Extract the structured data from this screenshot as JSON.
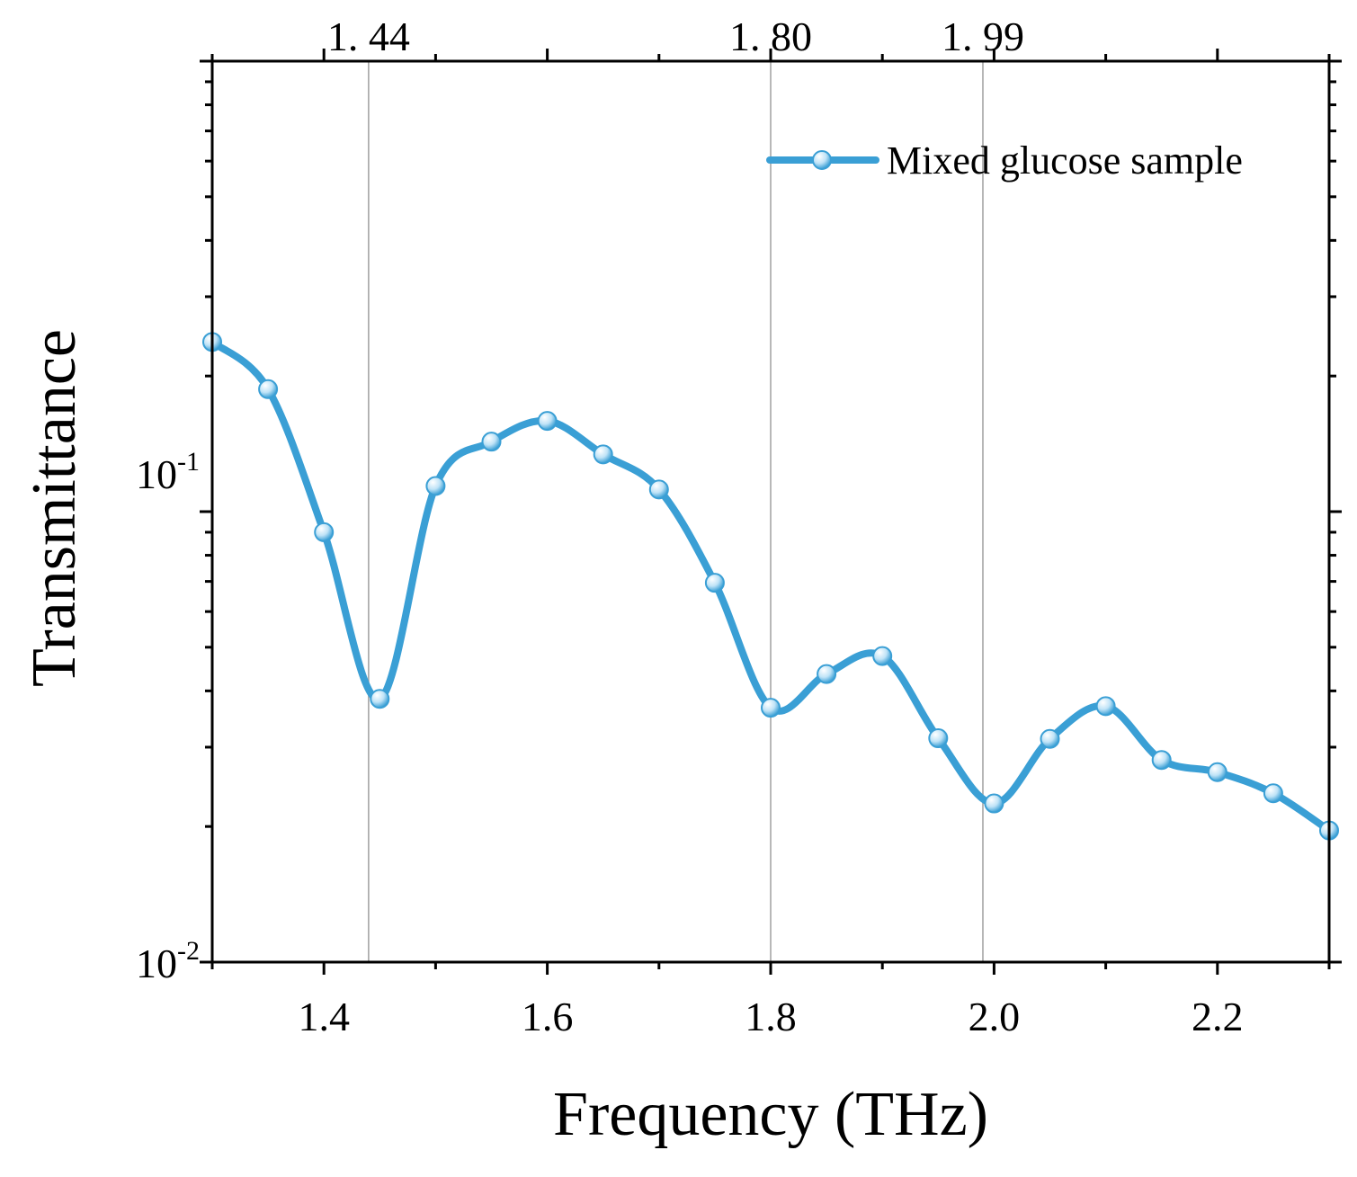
{
  "chart_data": {
    "type": "line",
    "title": "",
    "xlabel": "Frequency (THz)",
    "ylabel": "Transmittance",
    "xlim": [
      1.3,
      2.3
    ],
    "ylim": [
      0.01,
      1
    ],
    "yscale": "log",
    "x_ticks": [
      1.4,
      1.6,
      1.8,
      2.0,
      2.2
    ],
    "x_tick_labels": [
      "1.4",
      "1.6",
      "1.8",
      "2.0",
      "2.2"
    ],
    "y_ticks": [
      {
        "base": "10",
        "exp": "-1",
        "value": 0.1
      },
      {
        "base": "10",
        "exp": "-2",
        "value": 0.01
      }
    ],
    "legend_position": "top-right",
    "colors": {
      "series": "#3a9fd5",
      "reference": "#a0a0a0"
    },
    "reference_lines": [
      {
        "x": 1.44,
        "label": "1. 44"
      },
      {
        "x": 1.8,
        "label": "1. 80"
      },
      {
        "x": 1.99,
        "label": "1. 99"
      }
    ],
    "series": [
      {
        "name": "Mixed glucose sample",
        "x": [
          1.3,
          1.35,
          1.4,
          1.45,
          1.5,
          1.55,
          1.6,
          1.65,
          1.7,
          1.75,
          1.8,
          1.85,
          1.9,
          1.95,
          2.0,
          2.05,
          2.1,
          2.15,
          2.2,
          2.25,
          2.3
        ],
        "y": [
          0.238,
          0.187,
          0.09,
          0.0384,
          0.114,
          0.143,
          0.159,
          0.134,
          0.112,
          0.0695,
          0.0367,
          0.0436,
          0.0478,
          0.0314,
          0.0225,
          0.0313,
          0.037,
          0.0281,
          0.0264,
          0.0237,
          0.0196
        ]
      }
    ]
  }
}
